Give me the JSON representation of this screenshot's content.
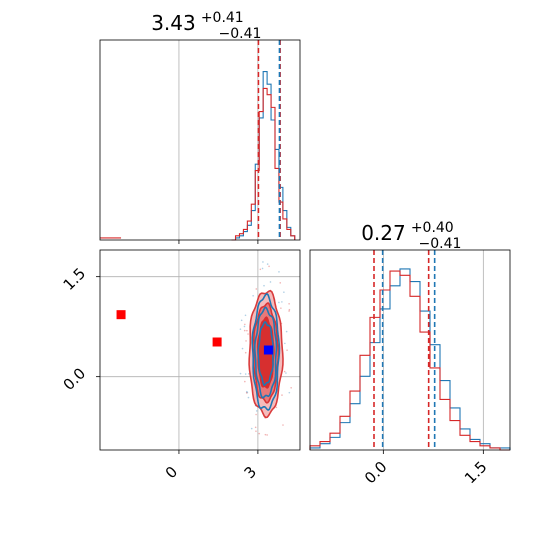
{
  "chart_data": [
    {
      "type": "histogram",
      "panel": "top-left",
      "title": {
        "base": "3.43",
        "sup": "+0.41",
        "sub": "−0.41"
      },
      "xlim": [
        -3.0,
        4.6
      ],
      "bin_edges": [
        2.0,
        2.15,
        2.3,
        2.45,
        2.6,
        2.75,
        2.9,
        3.05,
        3.2,
        3.35,
        3.5,
        3.65,
        3.8,
        3.95,
        4.1,
        4.25,
        4.4
      ],
      "series": [
        {
          "color": "#1f77b4",
          "values": [
            0,
            0.01,
            0.02,
            0.04,
            0.07,
            0.14,
            0.36,
            0.58,
            0.8,
            0.74,
            0.57,
            0.43,
            0.25,
            0.14,
            0.06,
            0.02
          ]
        },
        {
          "color": "#d62728",
          "values": [
            0,
            0.02,
            0.03,
            0.05,
            0.09,
            0.17,
            0.33,
            0.61,
            0.72,
            0.69,
            0.63,
            0.34,
            0.18,
            0.1,
            0.05,
            0.02
          ]
        }
      ],
      "tail_bins": [
        {
          "x0": -3.0,
          "x1": -2.2,
          "value": 0.01
        }
      ],
      "quantile_lines": [
        {
          "color": "#d62728",
          "x": [
            3.02,
            3.84,
            3.84
          ]
        },
        {
          "color": "#1f77b4",
          "x": [
            3.82
          ]
        }
      ]
    },
    {
      "type": "contour",
      "panel": "bottom-left",
      "xlim": [
        -3.0,
        4.6
      ],
      "ylim": [
        -1.1,
        1.9
      ],
      "x_ticks": [
        "0",
        "3"
      ],
      "x_tick_values": [
        0,
        3
      ],
      "y_ticks": [
        "0.0",
        "1.5"
      ],
      "y_tick_values": [
        0.0,
        1.5
      ],
      "center": {
        "x": 3.3,
        "y": 0.35
      },
      "blue_contour_radii": [
        [
          0.5,
          0.85
        ],
        [
          0.4,
          0.66
        ],
        [
          0.28,
          0.46
        ]
      ],
      "red_contour_radii": [
        [
          0.63,
          0.93
        ],
        [
          0.46,
          0.73
        ],
        [
          0.3,
          0.52
        ]
      ],
      "markers": [
        {
          "color": "#ff0000",
          "x": -2.2,
          "y": 0.93
        },
        {
          "color": "#ff0000",
          "x": 1.45,
          "y": 0.52
        },
        {
          "color": "#ff0000",
          "x": 3.4,
          "y": 0.4
        },
        {
          "color": "#0000ff",
          "x": 3.4,
          "y": 0.4
        }
      ]
    },
    {
      "type": "histogram",
      "panel": "bottom-right",
      "title": {
        "base": "0.27",
        "sup": "+0.40",
        "sub": "−0.41"
      },
      "xlim": [
        -1.1,
        1.9
      ],
      "x_ticks": [
        "0.0",
        "1.5"
      ],
      "x_tick_values": [
        0.0,
        1.5
      ],
      "bin_edges": [
        -1.1,
        -0.95,
        -0.8,
        -0.65,
        -0.5,
        -0.35,
        -0.2,
        -0.05,
        0.1,
        0.25,
        0.4,
        0.55,
        0.7,
        0.85,
        1.0,
        1.15,
        1.3,
        1.45,
        1.6,
        1.75,
        1.9
      ],
      "series": [
        {
          "color": "#1f77b4",
          "values": [
            0.01,
            0.03,
            0.06,
            0.13,
            0.22,
            0.35,
            0.51,
            0.67,
            0.78,
            0.86,
            0.8,
            0.66,
            0.5,
            0.33,
            0.2,
            0.1,
            0.05,
            0.03,
            0.01,
            0.01
          ]
        },
        {
          "color": "#d62728",
          "values": [
            0.02,
            0.04,
            0.08,
            0.16,
            0.28,
            0.45,
            0.63,
            0.76,
            0.85,
            0.83,
            0.73,
            0.56,
            0.39,
            0.24,
            0.14,
            0.07,
            0.04,
            0.02,
            0.01,
            0.0
          ]
        }
      ],
      "quantile_lines": [
        {
          "color": "#d62728",
          "x": [
            -0.14,
            0.68
          ]
        },
        {
          "color": "#1f77b4",
          "x": [
            -0.01,
            0.77
          ]
        }
      ]
    }
  ]
}
